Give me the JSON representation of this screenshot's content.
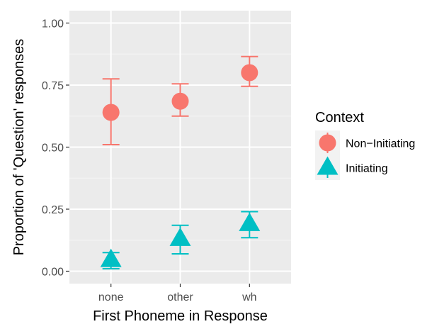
{
  "chart_data": {
    "type": "scatter",
    "title": "",
    "xlabel": "First Phoneme in Response",
    "ylabel": "Proportion of 'Question' responses",
    "categories": [
      "none",
      "other",
      "wh"
    ],
    "ylim": [
      -0.05,
      1.05
    ],
    "yticks": [
      "0.00",
      "0.25",
      "0.50",
      "0.75",
      "1.00"
    ],
    "ytick_values": [
      0.0,
      0.25,
      0.5,
      0.75,
      1.0
    ],
    "grid": true,
    "legend_position": "right",
    "legend_title": "Context",
    "series": [
      {
        "name": "Non−Initiating",
        "marker": "circle",
        "color": "#F8766D",
        "values": [
          0.64,
          0.685,
          0.8
        ],
        "lower": [
          0.51,
          0.625,
          0.745
        ],
        "upper": [
          0.775,
          0.755,
          0.865
        ]
      },
      {
        "name": "Initiating",
        "marker": "triangle",
        "color": "#00BFC4",
        "values": [
          0.045,
          0.13,
          0.19
        ],
        "lower": [
          0.01,
          0.07,
          0.135
        ],
        "upper": [
          0.075,
          0.185,
          0.24
        ]
      }
    ]
  }
}
